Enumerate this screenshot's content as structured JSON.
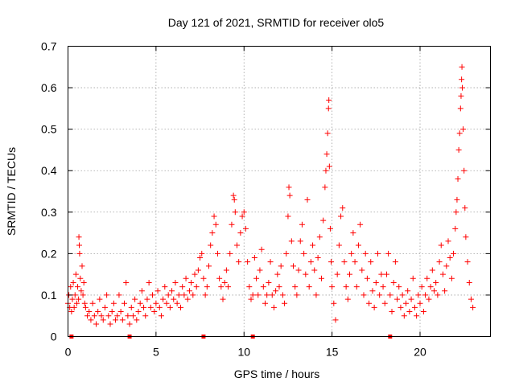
{
  "chart_data": {
    "type": "scatter",
    "title": "Day 121 of 2021, SRMTID for receiver olo5",
    "xlabel": "GPS time / hours",
    "ylabel": "SRMTID / TECUs",
    "xlim": [
      0,
      24
    ],
    "ylim": [
      0,
      0.7
    ],
    "xticks": [
      0,
      5,
      10,
      15,
      20
    ],
    "xtick_labels": [
      "0",
      "5",
      "10",
      "15",
      "20"
    ],
    "yticks": [
      0,
      0.1,
      0.2,
      0.3,
      0.4,
      0.5,
      0.6,
      0.7
    ],
    "ytick_labels": [
      "0",
      "0.1",
      "0.2",
      "0.3",
      "0.4",
      "0.5",
      "0.6",
      "0.7"
    ],
    "grid": true,
    "marker": "+",
    "color": "#ff0000",
    "gap_markers_x": [
      0.2,
      3.5,
      7.7,
      10.5,
      18.3
    ],
    "series": [
      {
        "name": "SRMTID",
        "points": [
          [
            0.0,
            0.08
          ],
          [
            0.05,
            0.1
          ],
          [
            0.1,
            0.07
          ],
          [
            0.15,
            0.12
          ],
          [
            0.2,
            0.06
          ],
          [
            0.25,
            0.09
          ],
          [
            0.3,
            0.13
          ],
          [
            0.35,
            0.07
          ],
          [
            0.4,
            0.1
          ],
          [
            0.45,
            0.15
          ],
          [
            0.5,
            0.08
          ],
          [
            0.55,
            0.12
          ],
          [
            0.6,
            0.09
          ],
          [
            0.62,
            0.24
          ],
          [
            0.64,
            0.22
          ],
          [
            0.66,
            0.2
          ],
          [
            0.7,
            0.14
          ],
          [
            0.75,
            0.11
          ],
          [
            0.8,
            0.17
          ],
          [
            0.85,
            0.1
          ],
          [
            0.9,
            0.13
          ],
          [
            0.95,
            0.08
          ],
          [
            1.0,
            0.07
          ],
          [
            1.1,
            0.05
          ],
          [
            1.2,
            0.06
          ],
          [
            1.3,
            0.04
          ],
          [
            1.4,
            0.08
          ],
          [
            1.5,
            0.05
          ],
          [
            1.6,
            0.03
          ],
          [
            1.7,
            0.06
          ],
          [
            1.8,
            0.09
          ],
          [
            1.9,
            0.05
          ],
          [
            2.0,
            0.04
          ],
          [
            2.1,
            0.07
          ],
          [
            2.2,
            0.1
          ],
          [
            2.3,
            0.05
          ],
          [
            2.4,
            0.03
          ],
          [
            2.5,
            0.06
          ],
          [
            2.6,
            0.08
          ],
          [
            2.7,
            0.04
          ],
          [
            2.8,
            0.05
          ],
          [
            2.9,
            0.1
          ],
          [
            3.0,
            0.06
          ],
          [
            3.1,
            0.04
          ],
          [
            3.2,
            0.08
          ],
          [
            3.3,
            0.13
          ],
          [
            3.4,
            0.05
          ],
          [
            3.5,
            0.03
          ],
          [
            3.6,
            0.07
          ],
          [
            3.7,
            0.05
          ],
          [
            3.8,
            0.09
          ],
          [
            3.9,
            0.04
          ],
          [
            4.0,
            0.06
          ],
          [
            4.1,
            0.08
          ],
          [
            4.2,
            0.11
          ],
          [
            4.3,
            0.07
          ],
          [
            4.4,
            0.05
          ],
          [
            4.5,
            0.09
          ],
          [
            4.6,
            0.13
          ],
          [
            4.7,
            0.07
          ],
          [
            4.8,
            0.1
          ],
          [
            4.9,
            0.06
          ],
          [
            5.0,
            0.08
          ],
          [
            5.1,
            0.11
          ],
          [
            5.2,
            0.07
          ],
          [
            5.3,
            0.05
          ],
          [
            5.4,
            0.09
          ],
          [
            5.5,
            0.12
          ],
          [
            5.6,
            0.08
          ],
          [
            5.7,
            0.1
          ],
          [
            5.8,
            0.07
          ],
          [
            5.9,
            0.11
          ],
          [
            6.0,
            0.09
          ],
          [
            6.1,
            0.13
          ],
          [
            6.2,
            0.08
          ],
          [
            6.3,
            0.1
          ],
          [
            6.4,
            0.07
          ],
          [
            6.5,
            0.12
          ],
          [
            6.6,
            0.1
          ],
          [
            6.7,
            0.14
          ],
          [
            6.8,
            0.09
          ],
          [
            6.9,
            0.11
          ],
          [
            7.0,
            0.13
          ],
          [
            7.1,
            0.1
          ],
          [
            7.2,
            0.15
          ],
          [
            7.3,
            0.12
          ],
          [
            7.4,
            0.16
          ],
          [
            7.5,
            0.19
          ],
          [
            7.6,
            0.2
          ],
          [
            7.7,
            0.14
          ],
          [
            7.8,
            0.1
          ],
          [
            7.9,
            0.12
          ],
          [
            8.0,
            0.17
          ],
          [
            8.1,
            0.22
          ],
          [
            8.2,
            0.25
          ],
          [
            8.3,
            0.29
          ],
          [
            8.4,
            0.27
          ],
          [
            8.5,
            0.2
          ],
          [
            8.6,
            0.14
          ],
          [
            8.7,
            0.12
          ],
          [
            8.8,
            0.09
          ],
          [
            8.9,
            0.13
          ],
          [
            9.0,
            0.16
          ],
          [
            9.1,
            0.12
          ],
          [
            9.2,
            0.2
          ],
          [
            9.3,
            0.27
          ],
          [
            9.4,
            0.34
          ],
          [
            9.45,
            0.33
          ],
          [
            9.5,
            0.3
          ],
          [
            9.6,
            0.22
          ],
          [
            9.7,
            0.18
          ],
          [
            9.8,
            0.25
          ],
          [
            9.9,
            0.29
          ],
          [
            10.0,
            0.3
          ],
          [
            10.1,
            0.26
          ],
          [
            10.2,
            0.18
          ],
          [
            10.3,
            0.12
          ],
          [
            10.4,
            0.09
          ],
          [
            10.5,
            0.1
          ],
          [
            10.6,
            0.19
          ],
          [
            10.7,
            0.14
          ],
          [
            10.8,
            0.1
          ],
          [
            10.9,
            0.16
          ],
          [
            11.0,
            0.21
          ],
          [
            11.1,
            0.12
          ],
          [
            11.2,
            0.08
          ],
          [
            11.3,
            0.1
          ],
          [
            11.4,
            0.13
          ],
          [
            11.5,
            0.18
          ],
          [
            11.6,
            0.1
          ],
          [
            11.7,
            0.07
          ],
          [
            11.8,
            0.11
          ],
          [
            11.9,
            0.15
          ],
          [
            12.0,
            0.12
          ],
          [
            12.1,
            0.17
          ],
          [
            12.2,
            0.1
          ],
          [
            12.3,
            0.08
          ],
          [
            12.4,
            0.2
          ],
          [
            12.5,
            0.29
          ],
          [
            12.55,
            0.36
          ],
          [
            12.6,
            0.34
          ],
          [
            12.7,
            0.23
          ],
          [
            12.8,
            0.17
          ],
          [
            12.9,
            0.12
          ],
          [
            13.0,
            0.1
          ],
          [
            13.1,
            0.16
          ],
          [
            13.2,
            0.23
          ],
          [
            13.3,
            0.27
          ],
          [
            13.4,
            0.2
          ],
          [
            13.5,
            0.15
          ],
          [
            13.6,
            0.33
          ],
          [
            13.7,
            0.12
          ],
          [
            13.8,
            0.18
          ],
          [
            13.9,
            0.22
          ],
          [
            14.0,
            0.16
          ],
          [
            14.1,
            0.1
          ],
          [
            14.2,
            0.19
          ],
          [
            14.3,
            0.24
          ],
          [
            14.4,
            0.14
          ],
          [
            14.5,
            0.28
          ],
          [
            14.6,
            0.36
          ],
          [
            14.65,
            0.4
          ],
          [
            14.7,
            0.44
          ],
          [
            14.75,
            0.49
          ],
          [
            14.8,
            0.55
          ],
          [
            14.82,
            0.57
          ],
          [
            14.85,
            0.41
          ],
          [
            14.9,
            0.26
          ],
          [
            14.95,
            0.18
          ],
          [
            15.0,
            0.12
          ],
          [
            15.1,
            0.08
          ],
          [
            15.2,
            0.04
          ],
          [
            15.3,
            0.15
          ],
          [
            15.4,
            0.22
          ],
          [
            15.5,
            0.29
          ],
          [
            15.6,
            0.31
          ],
          [
            15.7,
            0.18
          ],
          [
            15.8,
            0.12
          ],
          [
            15.9,
            0.09
          ],
          [
            16.0,
            0.15
          ],
          [
            16.1,
            0.2
          ],
          [
            16.2,
            0.25
          ],
          [
            16.3,
            0.18
          ],
          [
            16.4,
            0.12
          ],
          [
            16.5,
            0.22
          ],
          [
            16.6,
            0.27
          ],
          [
            16.7,
            0.16
          ],
          [
            16.8,
            0.1
          ],
          [
            16.9,
            0.2
          ],
          [
            17.0,
            0.14
          ],
          [
            17.1,
            0.08
          ],
          [
            17.2,
            0.18
          ],
          [
            17.3,
            0.11
          ],
          [
            17.4,
            0.07
          ],
          [
            17.5,
            0.13
          ],
          [
            17.6,
            0.2
          ],
          [
            17.7,
            0.1
          ],
          [
            17.8,
            0.15
          ],
          [
            17.9,
            0.12
          ],
          [
            18.0,
            0.08
          ],
          [
            18.1,
            0.15
          ],
          [
            18.2,
            0.2
          ],
          [
            18.3,
            0.1
          ],
          [
            18.4,
            0.06
          ],
          [
            18.5,
            0.13
          ],
          [
            18.6,
            0.18
          ],
          [
            18.7,
            0.09
          ],
          [
            18.8,
            0.12
          ],
          [
            18.9,
            0.07
          ],
          [
            19.0,
            0.1
          ],
          [
            19.1,
            0.05
          ],
          [
            19.2,
            0.08
          ],
          [
            19.3,
            0.11
          ],
          [
            19.4,
            0.06
          ],
          [
            19.5,
            0.09
          ],
          [
            19.6,
            0.14
          ],
          [
            19.7,
            0.07
          ],
          [
            19.8,
            0.05
          ],
          [
            19.9,
            0.1
          ],
          [
            20.0,
            0.08
          ],
          [
            20.1,
            0.12
          ],
          [
            20.2,
            0.06
          ],
          [
            20.3,
            0.1
          ],
          [
            20.4,
            0.14
          ],
          [
            20.5,
            0.09
          ],
          [
            20.6,
            0.12
          ],
          [
            20.7,
            0.16
          ],
          [
            20.8,
            0.11
          ],
          [
            20.9,
            0.13
          ],
          [
            21.0,
            0.1
          ],
          [
            21.1,
            0.18
          ],
          [
            21.2,
            0.22
          ],
          [
            21.3,
            0.15
          ],
          [
            21.4,
            0.11
          ],
          [
            21.5,
            0.17
          ],
          [
            21.6,
            0.23
          ],
          [
            21.7,
            0.19
          ],
          [
            21.8,
            0.14
          ],
          [
            21.9,
            0.2
          ],
          [
            22.0,
            0.26
          ],
          [
            22.05,
            0.3
          ],
          [
            22.1,
            0.33
          ],
          [
            22.15,
            0.38
          ],
          [
            22.2,
            0.45
          ],
          [
            22.25,
            0.49
          ],
          [
            22.3,
            0.55
          ],
          [
            22.33,
            0.58
          ],
          [
            22.36,
            0.62
          ],
          [
            22.38,
            0.65
          ],
          [
            22.4,
            0.6
          ],
          [
            22.45,
            0.5
          ],
          [
            22.5,
            0.4
          ],
          [
            22.55,
            0.31
          ],
          [
            22.6,
            0.24
          ],
          [
            22.7,
            0.18
          ],
          [
            22.8,
            0.13
          ],
          [
            22.9,
            0.09
          ],
          [
            23.0,
            0.07
          ]
        ]
      }
    ]
  }
}
